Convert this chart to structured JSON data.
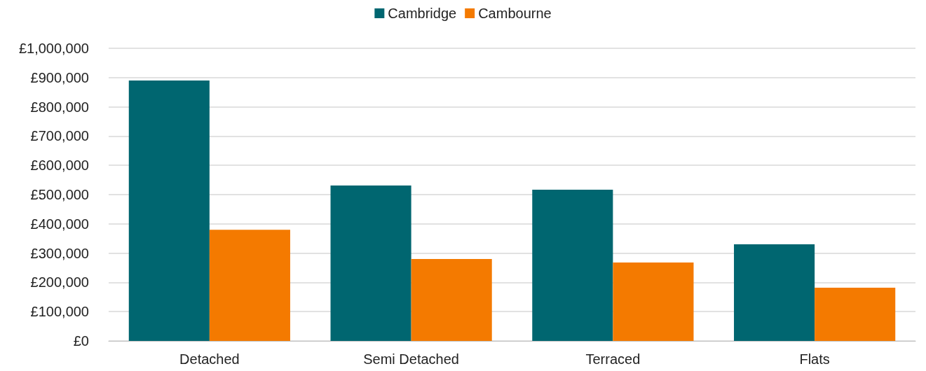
{
  "chart_data": {
    "type": "bar",
    "categories": [
      "Detached",
      "Semi Detached",
      "Terraced",
      "Flats"
    ],
    "series": [
      {
        "name": "Cambridge",
        "color": "#006670",
        "values": [
          890000,
          531000,
          517000,
          330000
        ]
      },
      {
        "name": "Cambourne",
        "color": "#f47a00",
        "values": [
          380000,
          280000,
          268000,
          182000
        ]
      }
    ],
    "ylim": [
      0,
      1000000
    ],
    "yticks": [
      {
        "value": 0,
        "label": "£0"
      },
      {
        "value": 100000,
        "label": "£100,000"
      },
      {
        "value": 200000,
        "label": "£200,000"
      },
      {
        "value": 300000,
        "label": "£300,000"
      },
      {
        "value": 400000,
        "label": "£400,000"
      },
      {
        "value": 500000,
        "label": "£500,000"
      },
      {
        "value": 600000,
        "label": "£600,000"
      },
      {
        "value": 700000,
        "label": "£700,000"
      },
      {
        "value": 800000,
        "label": "£800,000"
      },
      {
        "value": 900000,
        "label": "£900,000"
      },
      {
        "value": 1000000,
        "label": "£1,000,000"
      }
    ],
    "grid": "y",
    "legend": "top"
  }
}
